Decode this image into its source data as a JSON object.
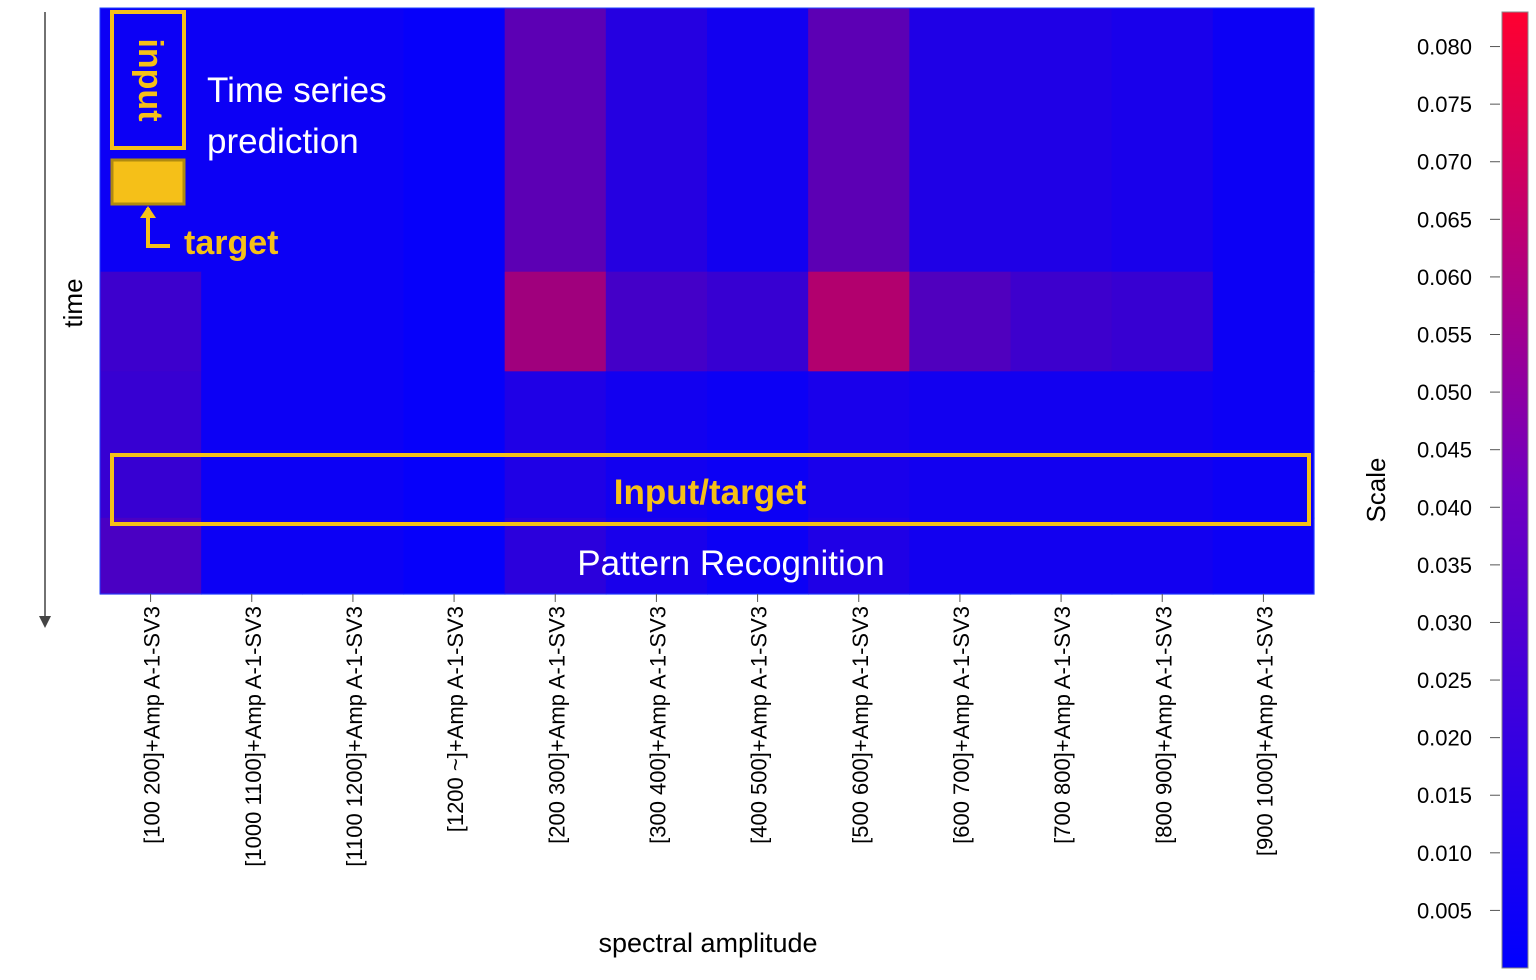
{
  "chart_data": {
    "type": "heatmap",
    "xlabel": "spectral amplitude",
    "ylabel": "time",
    "categories": [
      "[100 200]+Amp A-1-SV3",
      "[1000 1100]+Amp A-1-SV3",
      "[1100 1200]+Amp A-1-SV3",
      "[1200 ~]+Amp A-1-SV3",
      "[200 300]+Amp A-1-SV3",
      "[300 400]+Amp A-1-SV3",
      "[400 500]+Amp A-1-SV3",
      "[500 600]+Amp A-1-SV3",
      "[600 700]+Amp A-1-SV3",
      "[700 800]+Amp A-1-SV3",
      "[800 900]+Amp A-1-SV3",
      "[900 1000]+Amp A-1-SV3"
    ],
    "colorbar": {
      "label": "Scale",
      "ticks": [
        "0.080",
        "0.075",
        "0.070",
        "0.065",
        "0.060",
        "0.055",
        "0.050",
        "0.045",
        "0.040",
        "0.035",
        "0.030",
        "0.025",
        "0.020",
        "0.015",
        "0.010",
        "0.005"
      ],
      "range": [
        0.0,
        0.083
      ],
      "colors": [
        "#0000ff",
        "#ff0030"
      ]
    },
    "time_segments": [
      {
        "time_range": [
          0.0,
          0.45
        ],
        "values": [
          0.004,
          0.004,
          0.004,
          0.002,
          0.03,
          0.012,
          0.006,
          0.03,
          0.01,
          0.01,
          0.008,
          0.004
        ]
      },
      {
        "time_range": [
          0.45,
          0.62
        ],
        "values": [
          0.02,
          0.004,
          0.004,
          0.002,
          0.052,
          0.022,
          0.018,
          0.058,
          0.026,
          0.02,
          0.018,
          0.004
        ]
      },
      {
        "time_range": [
          0.62,
          0.87
        ],
        "values": [
          0.018,
          0.004,
          0.004,
          0.002,
          0.01,
          0.006,
          0.004,
          0.008,
          0.006,
          0.006,
          0.006,
          0.004
        ]
      },
      {
        "time_range": [
          0.87,
          1.0
        ],
        "values": [
          0.024,
          0.004,
          0.004,
          0.002,
          0.014,
          0.008,
          0.004,
          0.01,
          0.006,
          0.006,
          0.006,
          0.004
        ]
      }
    ]
  },
  "annotations": {
    "input_label": "input",
    "target_label": "target",
    "time_series_line1": "Time series",
    "time_series_line2": "prediction",
    "input_target_label": "Input/target",
    "pattern_recognition_label": "Pattern Recognition",
    "highlight_color": "#f5c018"
  }
}
